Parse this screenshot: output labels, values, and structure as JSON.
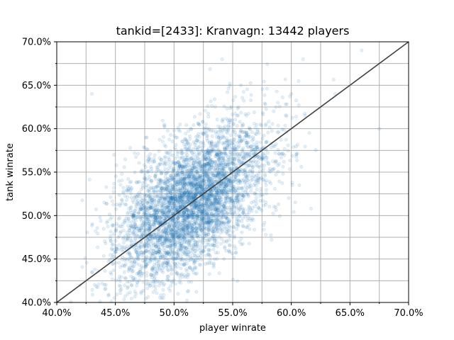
{
  "chart_data": {
    "type": "scatter",
    "title": "tankid=[2433]: Kranvagn: 13442 players",
    "xlabel": "player winrate",
    "ylabel": "tank winrate",
    "xlim": [
      0.4,
      0.7
    ],
    "ylim": [
      0.4,
      0.7
    ],
    "x_ticks": [
      0.4,
      0.45,
      0.5,
      0.55,
      0.6,
      0.65,
      0.7
    ],
    "x_tick_labels": [
      "40.0%",
      "45.0%",
      "50.0%",
      "55.0%",
      "60.0%",
      "65.0%",
      "70.0%"
    ],
    "y_ticks": [
      0.4,
      0.45,
      0.5,
      0.55,
      0.6,
      0.65,
      0.7
    ],
    "y_tick_labels": [
      "40.0%",
      "45.0%",
      "50.0%",
      "55.0%",
      "60.0%",
      "65.0%",
      "70.0%"
    ],
    "minor_grid_step": 0.025,
    "grid": true,
    "player_count": 13442,
    "point_color": "#1f77b4",
    "point_alpha": 0.12,
    "reference_line": {
      "from": [
        0.4,
        0.4
      ],
      "to": [
        0.7,
        0.7
      ],
      "color": "#404040"
    },
    "distribution": {
      "x_mean": 0.515,
      "x_sd": 0.032,
      "y_mean": 0.515,
      "y_sd": 0.045,
      "correlation": 0.55
    },
    "sample_points": [
      [
        0.495,
        0.5
      ],
      [
        0.505,
        0.51
      ],
      [
        0.515,
        0.52
      ],
      [
        0.525,
        0.53
      ],
      [
        0.48,
        0.46
      ],
      [
        0.47,
        0.45
      ],
      [
        0.54,
        0.56
      ],
      [
        0.56,
        0.59
      ],
      [
        0.585,
        0.62
      ],
      [
        0.6,
        0.64
      ],
      [
        0.43,
        0.64
      ],
      [
        0.675,
        0.6
      ],
      [
        0.61,
        0.68
      ],
      [
        0.66,
        0.69
      ],
      [
        0.42,
        0.42
      ],
      [
        0.455,
        0.415
      ]
    ]
  }
}
